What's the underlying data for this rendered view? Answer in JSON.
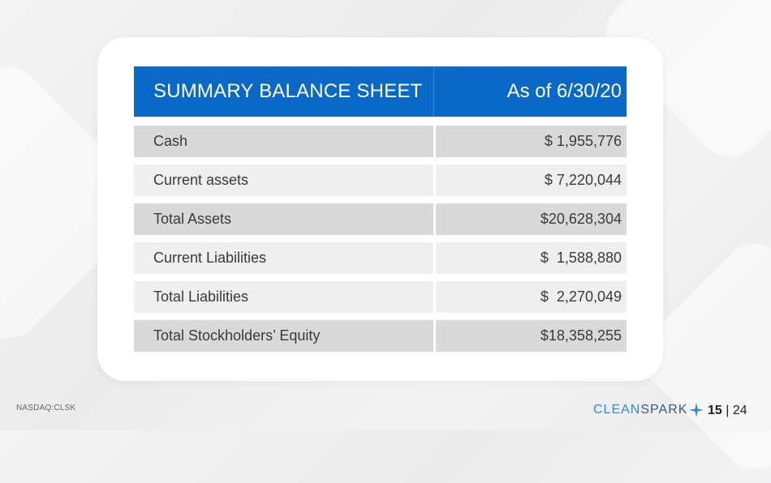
{
  "table": {
    "header": {
      "title": "SUMMARY BALANCE SHEET",
      "date": "As of 6/30/20"
    },
    "rows": [
      {
        "label": "Cash",
        "value": "$ 1,955,776"
      },
      {
        "label": "Current assets",
        "value": "$ 7,220,044"
      },
      {
        "label": "Total Assets",
        "value": "$20,628,304"
      },
      {
        "label": "Current Liabilities",
        "value": "$  1,588,880"
      },
      {
        "label": "Total Liabilities",
        "value": "$  2,270,049"
      },
      {
        "label": "Total Stockholders’ Equity",
        "value": "$18,358,255"
      }
    ]
  },
  "footer": {
    "ticker": "NASDAQ:CLSK",
    "brand_clean": "CLEAN",
    "brand_spark": "SPARK",
    "page_current": "15",
    "page_separator": " | ",
    "page_total": "24"
  },
  "colors": {
    "header_blue": "#0a69c7",
    "brand_blue": "#2a8fd6"
  }
}
